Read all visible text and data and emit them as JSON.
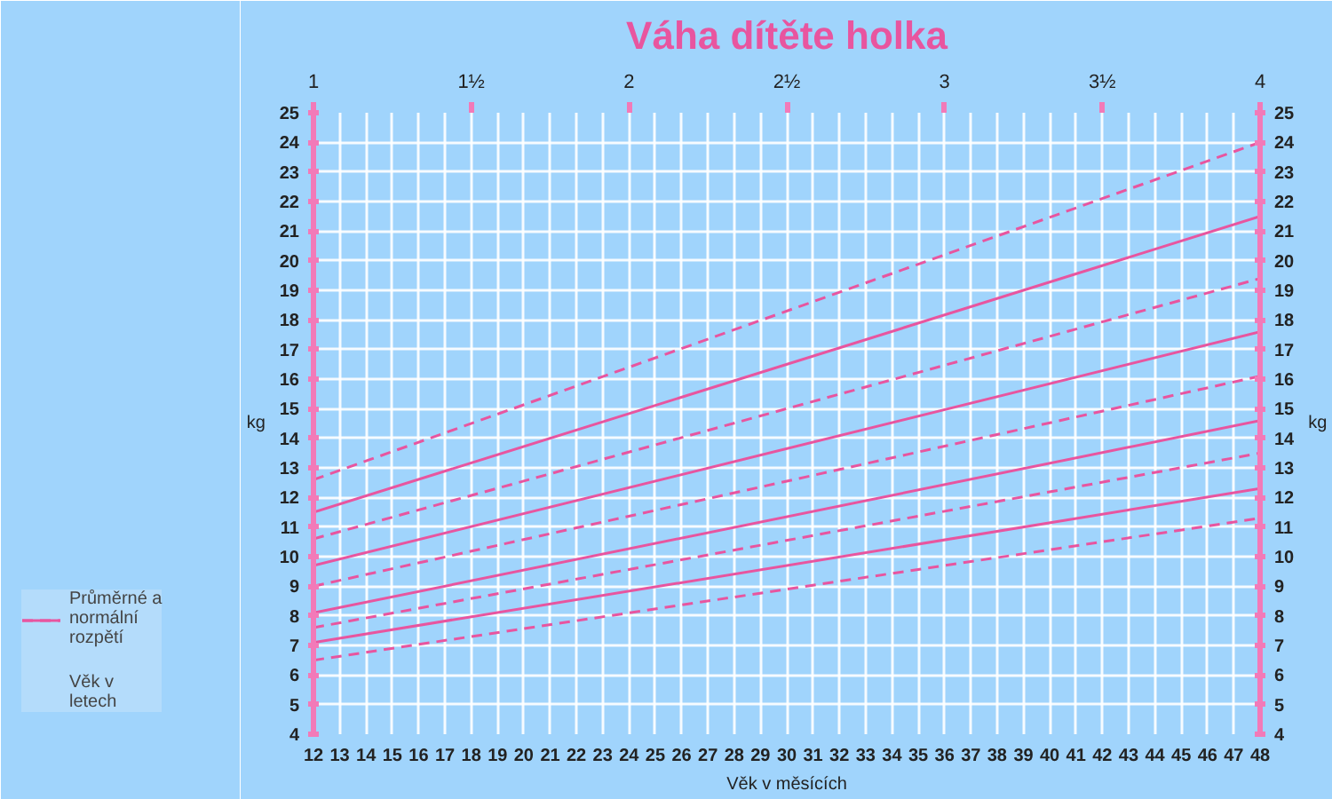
{
  "chart_data": {
    "type": "line",
    "title": "Váha dítěte holka",
    "xlabel": "Věk v měsících",
    "ylabel": "kg",
    "y2label": "kg",
    "x2label": "Věk v letech",
    "annotations": [
      "Průměrné a normální rozpětí"
    ],
    "x": [
      12,
      48
    ],
    "xlim": [
      12,
      48
    ],
    "xticks": [
      12,
      13,
      14,
      15,
      16,
      17,
      18,
      19,
      20,
      21,
      22,
      23,
      24,
      25,
      26,
      27,
      28,
      29,
      30,
      31,
      32,
      33,
      34,
      35,
      36,
      37,
      38,
      39,
      40,
      41,
      42,
      43,
      44,
      45,
      46,
      47,
      48
    ],
    "x2lim": [
      1,
      4
    ],
    "x2ticks": [
      1,
      {
        "value": 1.5,
        "label": "1½"
      },
      2,
      {
        "value": 2.5,
        "label": "2½"
      },
      3,
      {
        "value": 3.5,
        "label": "3½"
      },
      4
    ],
    "ylim": [
      4,
      25
    ],
    "yticks": [
      4,
      5,
      6,
      7,
      8,
      9,
      10,
      11,
      12,
      13,
      14,
      15,
      16,
      17,
      18,
      19,
      20,
      21,
      22,
      23,
      24,
      25
    ],
    "y2lim": [
      4,
      25
    ],
    "y2ticks": [
      4,
      5,
      6,
      7,
      8,
      9,
      10,
      11,
      12,
      13,
      14,
      15,
      16,
      17,
      18,
      19,
      20,
      21,
      22,
      23,
      24,
      25
    ],
    "grid": true,
    "marker": "none",
    "series": [
      {
        "color": "#e8559f",
        "line_style": "dashed",
        "values": [
          12.6,
          24.0
        ]
      },
      {
        "color": "#e8559f",
        "line_style": "solid",
        "values": [
          11.5,
          21.5
        ]
      },
      {
        "color": "#e8559f",
        "line_style": "dashed",
        "values": [
          10.6,
          19.4
        ]
      },
      {
        "color": "#e8559f",
        "line_style": "solid",
        "values": [
          9.7,
          17.6
        ]
      },
      {
        "color": "#e8559f",
        "line_style": "dashed",
        "values": [
          9.0,
          16.1
        ]
      },
      {
        "color": "#e8559f",
        "line_style": "solid",
        "values": [
          8.1,
          14.6
        ]
      },
      {
        "color": "#e8559f",
        "line_style": "dashed",
        "values": [
          7.6,
          13.5
        ]
      },
      {
        "color": "#e8559f",
        "line_style": "solid",
        "values": [
          7.1,
          12.3
        ]
      },
      {
        "color": "#e8559f",
        "line_style": "dashed",
        "values": [
          6.5,
          11.3
        ]
      }
    ]
  }
}
